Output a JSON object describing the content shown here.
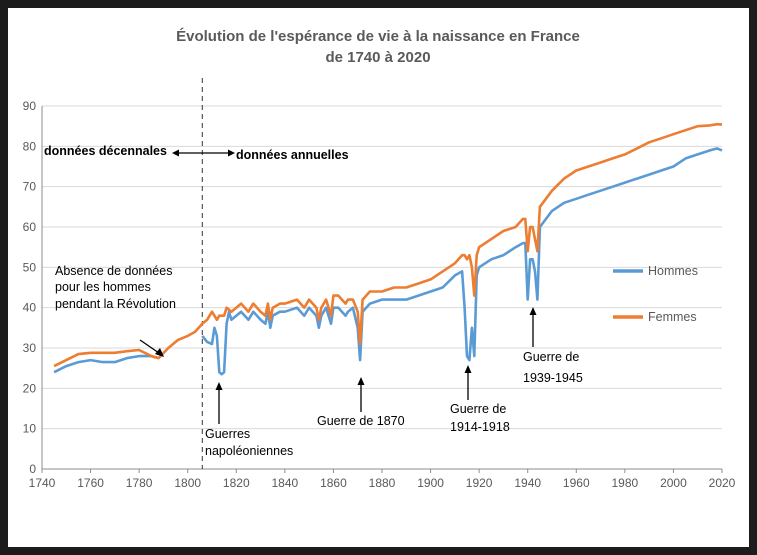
{
  "chart_data": {
    "type": "line",
    "title": [
      "Évolution de l'espérance de vie à la naissance en France",
      "de 1740 à 2020"
    ],
    "xlim": [
      1740,
      2020
    ],
    "ylim": [
      0,
      90
    ],
    "x_ticks": [
      1740,
      1760,
      1780,
      1800,
      1820,
      1840,
      1860,
      1880,
      1900,
      1920,
      1940,
      1960,
      1980,
      2000,
      2020
    ],
    "y_ticks": [
      0,
      10,
      20,
      30,
      40,
      50,
      60,
      70,
      80,
      90
    ],
    "grid": "horizontal",
    "legend_position": "right",
    "series": [
      {
        "name": "Hommes",
        "color": "#5b9bd5",
        "points": [
          [
            1745,
            24
          ],
          [
            1750,
            25.5
          ],
          [
            1755,
            26.5
          ],
          [
            1760,
            27
          ],
          [
            1765,
            26.5
          ],
          [
            1770,
            26.5
          ],
          [
            1775,
            27.5
          ],
          [
            1780,
            28
          ],
          [
            1785,
            28
          ],
          [
            1788,
            27.5
          ],
          [
            null,
            null
          ],
          [
            1806,
            33
          ],
          [
            1808,
            31.5
          ],
          [
            1810,
            31
          ],
          [
            1811,
            35
          ],
          [
            1812,
            33
          ],
          [
            1813,
            24
          ],
          [
            1814,
            23.5
          ],
          [
            1815,
            24
          ],
          [
            1816,
            36
          ],
          [
            1817,
            39
          ],
          [
            1818,
            37
          ],
          [
            1820,
            38
          ],
          [
            1822,
            39
          ],
          [
            1825,
            37
          ],
          [
            1827,
            39
          ],
          [
            1830,
            37
          ],
          [
            1832,
            36
          ],
          [
            1833,
            39
          ],
          [
            1834,
            35
          ],
          [
            1835,
            38
          ],
          [
            1838,
            39
          ],
          [
            1840,
            39
          ],
          [
            1845,
            40
          ],
          [
            1848,
            38
          ],
          [
            1850,
            40
          ],
          [
            1853,
            38
          ],
          [
            1854,
            35
          ],
          [
            1855,
            38
          ],
          [
            1857,
            40
          ],
          [
            1859,
            36
          ],
          [
            1860,
            40
          ],
          [
            1862,
            40
          ],
          [
            1865,
            38
          ],
          [
            1866,
            39
          ],
          [
            1868,
            40
          ],
          [
            1870,
            35
          ],
          [
            1871,
            27
          ],
          [
            1872,
            39
          ],
          [
            1875,
            41
          ],
          [
            1880,
            42
          ],
          [
            1885,
            42
          ],
          [
            1890,
            42
          ],
          [
            1895,
            43
          ],
          [
            1900,
            44
          ],
          [
            1905,
            45
          ],
          [
            1910,
            48
          ],
          [
            1913,
            49
          ],
          [
            1914,
            40
          ],
          [
            1915,
            28
          ],
          [
            1916,
            27
          ],
          [
            1917,
            35
          ],
          [
            1918,
            28
          ],
          [
            1919,
            48
          ],
          [
            1920,
            50
          ],
          [
            1925,
            52
          ],
          [
            1930,
            53
          ],
          [
            1935,
            55
          ],
          [
            1938,
            56
          ],
          [
            1939,
            56
          ],
          [
            1940,
            42
          ],
          [
            1941,
            52
          ],
          [
            1942,
            52
          ],
          [
            1943,
            49
          ],
          [
            1944,
            42
          ],
          [
            1945,
            60
          ],
          [
            1950,
            64
          ],
          [
            1955,
            66
          ],
          [
            1960,
            67
          ],
          [
            1965,
            68
          ],
          [
            1970,
            69
          ],
          [
            1975,
            70
          ],
          [
            1980,
            71
          ],
          [
            1985,
            72
          ],
          [
            1990,
            73
          ],
          [
            1995,
            74
          ],
          [
            2000,
            75
          ],
          [
            2005,
            77
          ],
          [
            2010,
            78
          ],
          [
            2015,
            79
          ],
          [
            2018,
            79.5
          ],
          [
            2020,
            79
          ]
        ]
      },
      {
        "name": "Femmes",
        "color": "#ed7d31",
        "points": [
          [
            1745,
            25.5
          ],
          [
            1750,
            27
          ],
          [
            1755,
            28.5
          ],
          [
            1760,
            28.8
          ],
          [
            1765,
            28.8
          ],
          [
            1770,
            28.8
          ],
          [
            1775,
            29.2
          ],
          [
            1780,
            29.5
          ],
          [
            1785,
            28
          ],
          [
            1788,
            27.5
          ],
          [
            1792,
            30
          ],
          [
            1796,
            32
          ],
          [
            1800,
            33
          ],
          [
            1803,
            34
          ],
          [
            1806,
            36
          ],
          [
            1808,
            37
          ],
          [
            1810,
            39
          ],
          [
            1812,
            37
          ],
          [
            1813,
            38
          ],
          [
            1815,
            38
          ],
          [
            1816,
            40
          ],
          [
            1818,
            39
          ],
          [
            1820,
            40
          ],
          [
            1822,
            41
          ],
          [
            1825,
            39
          ],
          [
            1827,
            41
          ],
          [
            1830,
            39
          ],
          [
            1832,
            38
          ],
          [
            1833,
            41
          ],
          [
            1834,
            37
          ],
          [
            1835,
            40
          ],
          [
            1838,
            41
          ],
          [
            1840,
            41
          ],
          [
            1845,
            42
          ],
          [
            1848,
            40
          ],
          [
            1850,
            42
          ],
          [
            1853,
            40
          ],
          [
            1854,
            37
          ],
          [
            1855,
            40
          ],
          [
            1857,
            42
          ],
          [
            1859,
            38
          ],
          [
            1860,
            43
          ],
          [
            1862,
            43
          ],
          [
            1865,
            41
          ],
          [
            1866,
            42
          ],
          [
            1868,
            42
          ],
          [
            1870,
            39
          ],
          [
            1871,
            31
          ],
          [
            1872,
            42
          ],
          [
            1875,
            44
          ],
          [
            1880,
            44
          ],
          [
            1885,
            45
          ],
          [
            1890,
            45
          ],
          [
            1895,
            46
          ],
          [
            1900,
            47
          ],
          [
            1905,
            49
          ],
          [
            1910,
            51
          ],
          [
            1913,
            53
          ],
          [
            1914,
            53
          ],
          [
            1915,
            52
          ],
          [
            1916,
            53
          ],
          [
            1917,
            50
          ],
          [
            1918,
            43
          ],
          [
            1919,
            53
          ],
          [
            1920,
            55
          ],
          [
            1925,
            57
          ],
          [
            1930,
            59
          ],
          [
            1935,
            60
          ],
          [
            1938,
            62
          ],
          [
            1939,
            62
          ],
          [
            1940,
            54
          ],
          [
            1941,
            60
          ],
          [
            1942,
            60
          ],
          [
            1943,
            57
          ],
          [
            1944,
            54
          ],
          [
            1945,
            65
          ],
          [
            1950,
            69
          ],
          [
            1955,
            72
          ],
          [
            1960,
            74
          ],
          [
            1965,
            75
          ],
          [
            1970,
            76
          ],
          [
            1975,
            77
          ],
          [
            1980,
            78
          ],
          [
            1985,
            79.5
          ],
          [
            1990,
            81
          ],
          [
            1995,
            82
          ],
          [
            2000,
            83
          ],
          [
            2005,
            84
          ],
          [
            2010,
            85
          ],
          [
            2015,
            85.2
          ],
          [
            2018,
            85.5
          ],
          [
            2020,
            85.4
          ]
        ]
      }
    ],
    "annotations": {
      "decennial": "données décennales",
      "annual": "données annuelles",
      "absence": [
        "Absence de données",
        "pour les hommes",
        "pendant la Révolution"
      ],
      "napoleon": [
        "Guerres",
        "napoléoniennes"
      ],
      "war1870": "Guerre de 1870",
      "ww1": [
        "Guerre de",
        "1914-1918"
      ],
      "ww2": [
        "Guerre de",
        "1939-1945"
      ]
    }
  }
}
